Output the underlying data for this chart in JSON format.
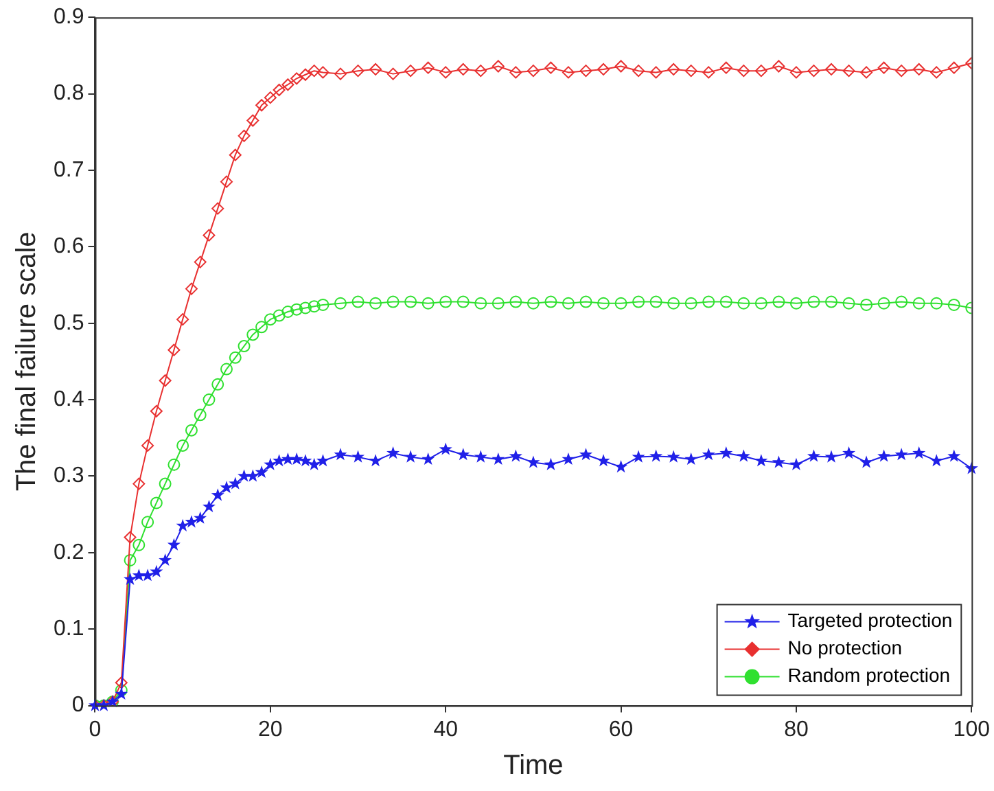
{
  "chart_data": {
    "type": "line",
    "xlabel": "Time",
    "ylabel": "The final failure scale",
    "x": [
      0,
      1,
      2,
      3,
      4,
      5,
      6,
      7,
      8,
      9,
      10,
      11,
      12,
      13,
      14,
      15,
      16,
      17,
      18,
      19,
      20,
      21,
      22,
      23,
      24,
      25,
      26,
      28,
      30,
      32,
      34,
      36,
      38,
      40,
      42,
      44,
      46,
      48,
      50,
      52,
      54,
      56,
      58,
      60,
      62,
      64,
      66,
      68,
      70,
      72,
      74,
      76,
      78,
      80,
      82,
      84,
      86,
      88,
      90,
      92,
      94,
      96,
      98,
      100
    ],
    "series": [
      {
        "name": "Targeted protection",
        "color": "#2020e8",
        "marker": "star",
        "values": [
          0,
          0,
          0.005,
          0.015,
          0.165,
          0.17,
          0.17,
          0.175,
          0.19,
          0.21,
          0.235,
          0.24,
          0.245,
          0.26,
          0.275,
          0.285,
          0.29,
          0.3,
          0.3,
          0.305,
          0.315,
          0.32,
          0.322,
          0.322,
          0.32,
          0.315,
          0.32,
          0.328,
          0.325,
          0.32,
          0.33,
          0.325,
          0.322,
          0.335,
          0.328,
          0.325,
          0.322,
          0.326,
          0.318,
          0.315,
          0.322,
          0.328,
          0.32,
          0.312,
          0.325,
          0.326,
          0.325,
          0.322,
          0.328,
          0.33,
          0.326,
          0.32,
          0.318,
          0.315,
          0.326,
          0.325,
          0.33,
          0.318,
          0.326,
          0.328,
          0.33,
          0.32,
          0.326,
          0.31
        ]
      },
      {
        "name": "No protection",
        "color": "#e83030",
        "marker": "diamond",
        "values": [
          0,
          0,
          0.005,
          0.03,
          0.22,
          0.29,
          0.34,
          0.385,
          0.425,
          0.465,
          0.505,
          0.545,
          0.58,
          0.615,
          0.65,
          0.685,
          0.72,
          0.745,
          0.765,
          0.785,
          0.795,
          0.805,
          0.812,
          0.82,
          0.825,
          0.83,
          0.828,
          0.826,
          0.83,
          0.832,
          0.826,
          0.83,
          0.834,
          0.828,
          0.832,
          0.83,
          0.836,
          0.828,
          0.83,
          0.834,
          0.828,
          0.83,
          0.832,
          0.836,
          0.83,
          0.828,
          0.832,
          0.83,
          0.828,
          0.834,
          0.83,
          0.83,
          0.836,
          0.828,
          0.83,
          0.832,
          0.83,
          0.828,
          0.834,
          0.83,
          0.832,
          0.828,
          0.834,
          0.84
        ]
      },
      {
        "name": "Random protection",
        "color": "#30e030",
        "marker": "circle",
        "values": [
          0,
          0,
          0.005,
          0.02,
          0.19,
          0.21,
          0.24,
          0.265,
          0.29,
          0.315,
          0.34,
          0.36,
          0.38,
          0.4,
          0.42,
          0.44,
          0.455,
          0.47,
          0.485,
          0.495,
          0.505,
          0.51,
          0.515,
          0.518,
          0.52,
          0.522,
          0.524,
          0.526,
          0.528,
          0.526,
          0.528,
          0.528,
          0.526,
          0.528,
          0.528,
          0.526,
          0.526,
          0.528,
          0.526,
          0.528,
          0.526,
          0.528,
          0.526,
          0.526,
          0.528,
          0.528,
          0.526,
          0.526,
          0.528,
          0.528,
          0.526,
          0.526,
          0.528,
          0.526,
          0.528,
          0.528,
          0.526,
          0.524,
          0.526,
          0.528,
          0.526,
          0.526,
          0.524,
          0.52
        ]
      }
    ],
    "xlim": [
      0,
      100
    ],
    "xticks": [
      0,
      20,
      40,
      60,
      80,
      100
    ],
    "ylim": [
      0,
      0.9
    ],
    "yticks": [
      0,
      0.1,
      0.2,
      0.3,
      0.4,
      0.5,
      0.6,
      0.7,
      0.8,
      0.9
    ],
    "grid": false,
    "legend": "bottom right",
    "line_style": "solid"
  }
}
